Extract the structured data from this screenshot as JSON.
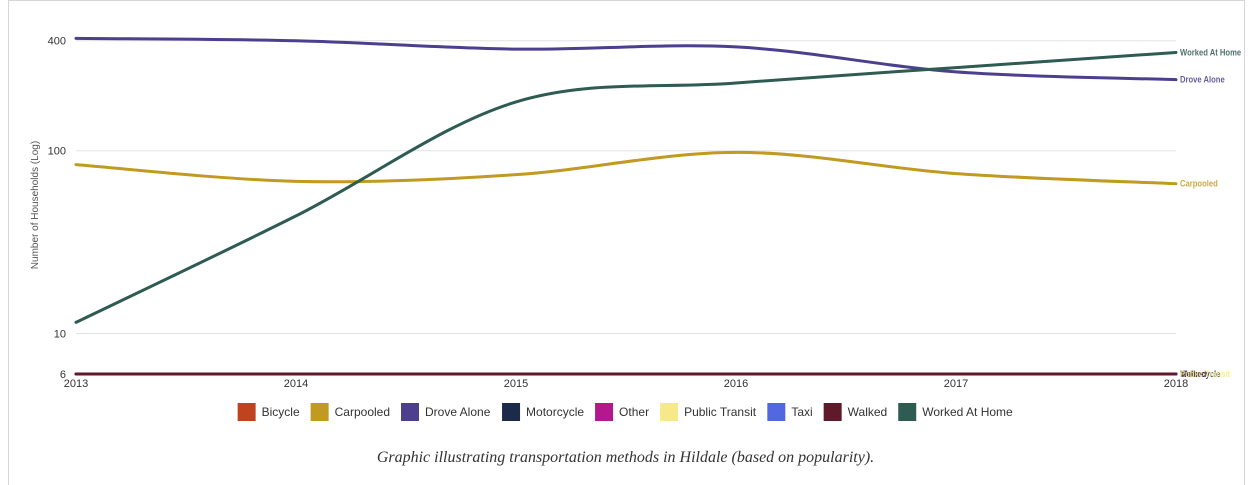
{
  "caption": "Graphic illustrating transportation methods in Hildale (based on popularity).",
  "chart_data": {
    "type": "line",
    "title": "",
    "xlabel": "",
    "ylabel": "Number of Households (Log)",
    "yscale": "log",
    "ylim": [
      6,
      430
    ],
    "y_ticks": [
      "400",
      "100",
      "10",
      "6"
    ],
    "x": [
      "2013",
      "2014",
      "2015",
      "2016",
      "2017",
      "2018"
    ],
    "grid": true,
    "legend_position": "bottom",
    "series": [
      {
        "name": "Bicycle",
        "color": "#c0431f",
        "values": [
          6,
          6,
          6,
          6,
          6,
          6
        ]
      },
      {
        "name": "Carpooled",
        "color": "#c19a21",
        "values": [
          84,
          68,
          74,
          98,
          75,
          66
        ]
      },
      {
        "name": "Drove Alone",
        "color": "#4b3f8e",
        "values": [
          412,
          400,
          360,
          370,
          270,
          245
        ]
      },
      {
        "name": "Motorcycle",
        "color": "#1d2b4a",
        "values": [
          6,
          6,
          6,
          6,
          6,
          6
        ]
      },
      {
        "name": "Other",
        "color": "#b3188c",
        "values": [
          6,
          6,
          6,
          6,
          6,
          6
        ]
      },
      {
        "name": "Public Transit",
        "color": "#f7e98a",
        "values": [
          6,
          6,
          6,
          6,
          6,
          6
        ]
      },
      {
        "name": "Taxi",
        "color": "#5168e0",
        "values": [
          6,
          6,
          6,
          6,
          6,
          6
        ]
      },
      {
        "name": "Walked",
        "color": "#5e1a2a",
        "values": [
          6,
          6,
          6,
          6,
          6,
          6
        ]
      },
      {
        "name": "Worked At Home",
        "color": "#2e5b52",
        "values": [
          11.5,
          44,
          185,
          235,
          285,
          345
        ]
      }
    ],
    "end_labels": [
      {
        "series": "Worked At Home",
        "text": "Worked At Home"
      },
      {
        "series": "Drove Alone",
        "text": "Drove Alone"
      },
      {
        "series": "Carpooled",
        "text": "Carpooled"
      },
      {
        "series": "Walked",
        "text": "Walked"
      },
      {
        "series": "Motorcycle",
        "text": "Motorcycle"
      },
      {
        "series": "Public Transit",
        "text": "Public Transit"
      }
    ]
  }
}
